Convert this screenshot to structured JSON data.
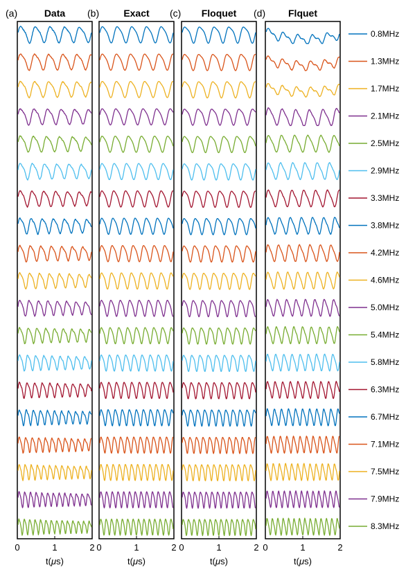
{
  "colors": [
    "#0072BD",
    "#D95319",
    "#EDB120",
    "#7E2F8E",
    "#77AC30",
    "#4DBEEE",
    "#A2142F"
  ],
  "chart_data": {
    "type": "line",
    "layout": "four stacked-trace panels sharing a legend",
    "x_range": [
      0,
      2
    ],
    "x_ticks": [
      "0",
      "1",
      "2"
    ],
    "xlabel_prefix": "t(",
    "xlabel_symbol": "μ",
    "xlabel_suffix": "s)",
    "y_ticks": "none",
    "legend": [
      "0.8MHz",
      "1.3MHz",
      "1.7MHz",
      "2.1MHz",
      "2.5MHz",
      "2.9MHz",
      "3.3MHz",
      "3.8MHz",
      "4.2MHz",
      "4.6MHz",
      "5.0MHz",
      "5.4MHz",
      "5.8MHz",
      "6.3MHz",
      "6.7MHz",
      "7.1MHz",
      "7.5MHz",
      "7.9MHz",
      "8.3MHz"
    ],
    "legend_placement": "right",
    "series_note": "one oscillating trace per frequency, stacked vertically",
    "trace_oscillations_per_us": [
      2.5,
      2.6,
      2.6,
      2.7,
      2.8,
      3.0,
      3.1,
      3.3,
      3.5,
      3.7,
      3.9,
      4.2,
      4.5,
      4.8,
      5.2,
      5.6,
      6.0,
      6.4,
      6.8
    ],
    "panels": [
      {
        "label": "(a)",
        "title": "Data"
      },
      {
        "label": "(b)",
        "title": "Exact"
      },
      {
        "label": "(c)",
        "title": "Floquet"
      },
      {
        "label": "(d)",
        "title": "Flquet"
      }
    ]
  }
}
